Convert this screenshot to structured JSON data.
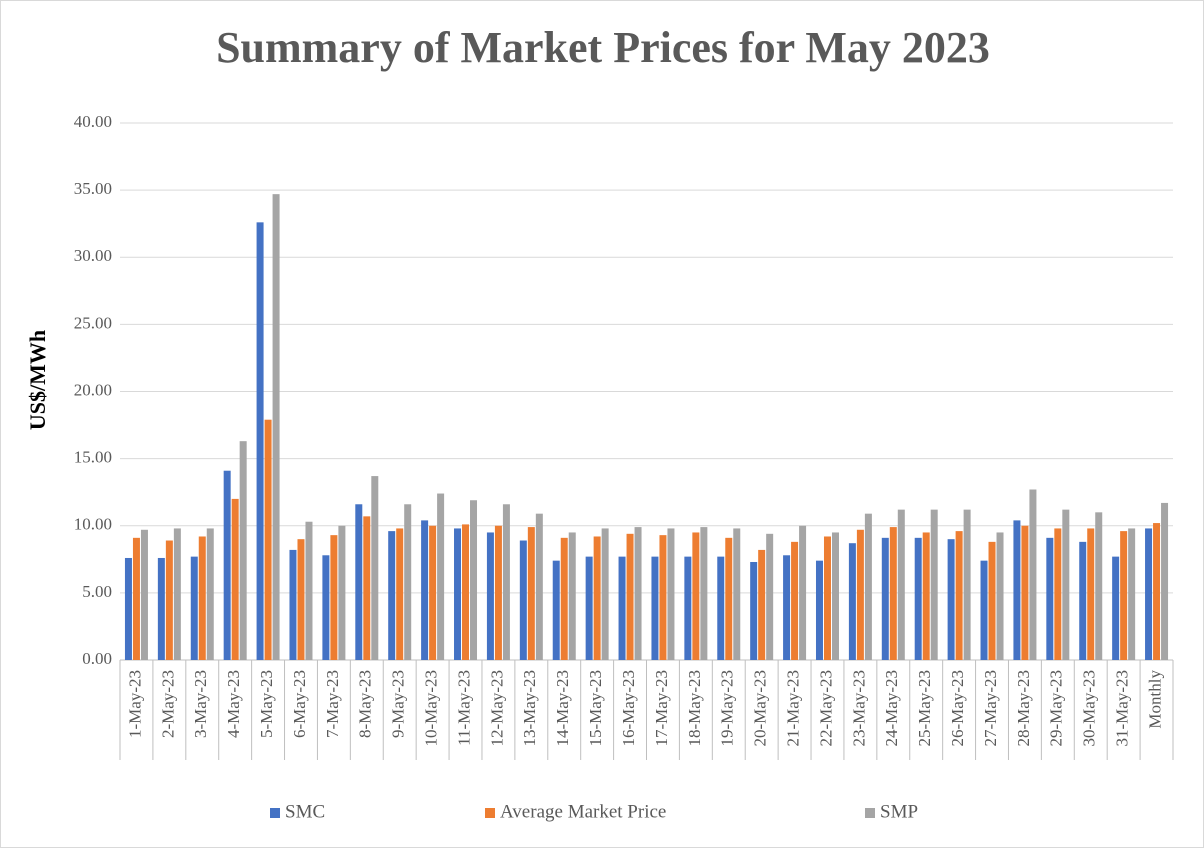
{
  "chart_data": {
    "type": "bar",
    "title": "Summary of  Market Prices for May 2023",
    "y_label": "US$/MWh",
    "categories": [
      "1-May-23",
      "2-May-23",
      "3-May-23",
      "4-May-23",
      "5-May-23",
      "6-May-23",
      "7-May-23",
      "8-May-23",
      "9-May-23",
      "10-May-23",
      "11-May-23",
      "12-May-23",
      "13-May-23",
      "14-May-23",
      "15-May-23",
      "16-May-23",
      "17-May-23",
      "18-May-23",
      "19-May-23",
      "20-May-23",
      "21-May-23",
      "22-May-23",
      "23-May-23",
      "24-May-23",
      "25-May-23",
      "26-May-23",
      "27-May-23",
      "28-May-23",
      "29-May-23",
      "30-May-23",
      "31-May-23",
      "Monthly"
    ],
    "series": [
      {
        "name": "SMC",
        "color": "#4472c4",
        "values": [
          7.6,
          7.6,
          7.7,
          14.1,
          32.6,
          8.2,
          7.8,
          11.6,
          9.6,
          10.4,
          9.8,
          9.5,
          8.9,
          7.4,
          7.7,
          7.7,
          7.7,
          7.7,
          7.7,
          7.3,
          7.8,
          7.4,
          8.7,
          9.1,
          9.1,
          9.0,
          7.4,
          10.4,
          9.1,
          8.8,
          7.7,
          9.8
        ]
      },
      {
        "name": "Average Market Price",
        "color": "#ed7d31",
        "values": [
          9.1,
          8.9,
          9.2,
          12.0,
          17.9,
          9.0,
          9.3,
          10.7,
          9.8,
          10.0,
          10.1,
          10.0,
          9.9,
          9.1,
          9.2,
          9.4,
          9.3,
          9.5,
          9.1,
          8.2,
          8.8,
          9.2,
          9.7,
          9.9,
          9.5,
          9.6,
          8.8,
          10.0,
          9.8,
          9.8,
          9.6,
          10.2
        ]
      },
      {
        "name": "SMP",
        "color": "#a5a5a5",
        "values": [
          9.7,
          9.8,
          9.8,
          16.3,
          34.7,
          10.3,
          10.0,
          13.7,
          11.6,
          12.4,
          11.9,
          11.6,
          10.9,
          9.5,
          9.8,
          9.9,
          9.8,
          9.9,
          9.8,
          9.4,
          10.0,
          9.5,
          10.9,
          11.2,
          11.2,
          11.2,
          9.5,
          12.7,
          11.2,
          11.0,
          9.8,
          11.7
        ]
      }
    ],
    "ylim": [
      0,
      40
    ],
    "yticks": [
      {
        "value": 0,
        "label": "0.00"
      },
      {
        "value": 5,
        "label": "5.00"
      },
      {
        "value": 10,
        "label": "10.00"
      },
      {
        "value": 15,
        "label": "15.00"
      },
      {
        "value": 20,
        "label": "20.00"
      },
      {
        "value": 25,
        "label": "25.00"
      },
      {
        "value": 30,
        "label": "30.00"
      },
      {
        "value": 35,
        "label": "35.00"
      },
      {
        "value": 40,
        "label": "40.00"
      }
    ],
    "grid": true,
    "legend": "bottom"
  }
}
